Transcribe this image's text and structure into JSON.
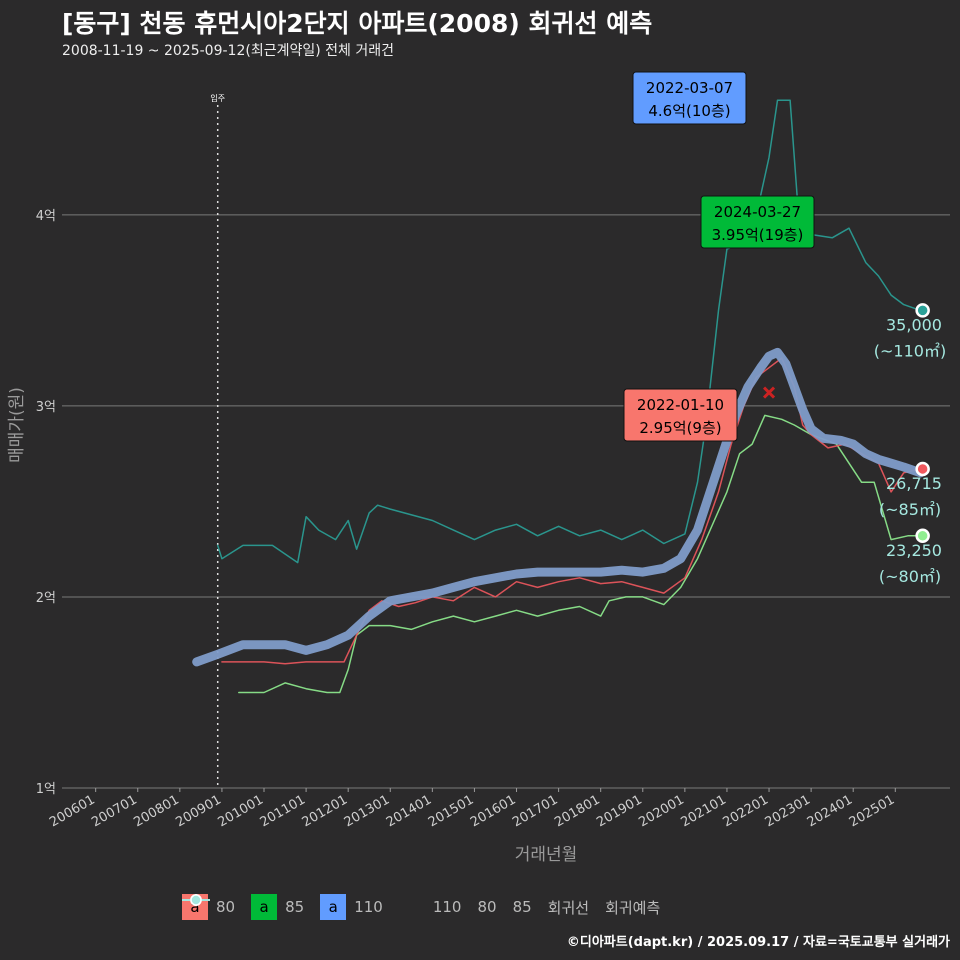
{
  "title": "[동구] 천동 휴먼시아2단지 아파트(2008) 회귀선 예측",
  "subtitle": "2008-11-19 ~ 2025-09-12(최근계약일) 전체 거래건",
  "caption": "©디아파트(dapt.kr) / 2025.09.17 / 자료=국토교통부 실거래가",
  "colors": {
    "c80": "#f8766d",
    "c85": "#00ba38",
    "c110": "#619cff",
    "line110": "#2aa198",
    "line80": "#90ee90",
    "line85": "#f0585e",
    "regression": "#7f9cc9",
    "forecast": "#a5e8e0"
  },
  "chart_data": {
    "type": "line",
    "xlabel": "거래년월",
    "ylabel": "매매가(원)",
    "ylim": [
      1.0,
      4.8
    ],
    "y_ticks": [
      1,
      2,
      3,
      4
    ],
    "y_tick_labels": [
      "1억",
      "2억",
      "3억",
      "4억"
    ],
    "x_range": [
      2005.2,
      2026.3
    ],
    "x_ticks": [
      2006,
      2007,
      2008,
      2009,
      2010,
      2011,
      2012,
      2013,
      2014,
      2015,
      2016,
      2017,
      2018,
      2019,
      2020,
      2021,
      2022,
      2023,
      2024,
      2025
    ],
    "x_tick_labels": [
      "200601",
      "200701",
      "200801",
      "200901",
      "201001",
      "201101",
      "201201",
      "201301",
      "201401",
      "201501",
      "201601",
      "201701",
      "201801",
      "201901",
      "202001",
      "202101",
      "202201",
      "202301",
      "202401",
      "202501"
    ],
    "move_in": {
      "x": 2008.9,
      "label": "입주"
    },
    "series": [
      {
        "name": "110",
        "points": [
          [
            2008.9,
            2.27
          ],
          [
            2009.0,
            2.2
          ],
          [
            2009.5,
            2.27
          ],
          [
            2010.2,
            2.27
          ],
          [
            2010.8,
            2.18
          ],
          [
            2011.0,
            2.42
          ],
          [
            2011.3,
            2.35
          ],
          [
            2011.7,
            2.3
          ],
          [
            2012.0,
            2.4
          ],
          [
            2012.2,
            2.25
          ],
          [
            2012.5,
            2.44
          ],
          [
            2012.7,
            2.48
          ],
          [
            2013.0,
            2.46
          ],
          [
            2014.0,
            2.4
          ],
          [
            2014.5,
            2.35
          ],
          [
            2015.0,
            2.3
          ],
          [
            2015.5,
            2.35
          ],
          [
            2016.0,
            2.38
          ],
          [
            2016.5,
            2.32
          ],
          [
            2017.0,
            2.37
          ],
          [
            2017.5,
            2.32
          ],
          [
            2018.0,
            2.35
          ],
          [
            2018.5,
            2.3
          ],
          [
            2019.0,
            2.35
          ],
          [
            2019.5,
            2.28
          ],
          [
            2020.0,
            2.33
          ],
          [
            2020.3,
            2.6
          ],
          [
            2020.5,
            2.9
          ],
          [
            2020.8,
            3.5
          ],
          [
            2021.0,
            3.82
          ],
          [
            2021.3,
            3.85
          ],
          [
            2021.5,
            3.95
          ],
          [
            2021.8,
            4.1
          ],
          [
            2022.0,
            4.3
          ],
          [
            2022.2,
            4.6
          ],
          [
            2022.5,
            4.6
          ],
          [
            2022.7,
            4.0
          ],
          [
            2022.9,
            3.9
          ],
          [
            2023.5,
            3.88
          ],
          [
            2023.9,
            3.93
          ],
          [
            2024.3,
            3.75
          ],
          [
            2024.6,
            3.68
          ],
          [
            2024.9,
            3.58
          ],
          [
            2025.2,
            3.53
          ],
          [
            2025.6,
            3.5
          ]
        ]
      },
      {
        "name": "80",
        "points": [
          [
            2009.4,
            1.5
          ],
          [
            2010.0,
            1.5
          ],
          [
            2010.5,
            1.55
          ],
          [
            2011.0,
            1.52
          ],
          [
            2011.5,
            1.5
          ],
          [
            2011.8,
            1.5
          ],
          [
            2012.0,
            1.62
          ],
          [
            2012.2,
            1.8
          ],
          [
            2012.5,
            1.85
          ],
          [
            2013.0,
            1.85
          ],
          [
            2013.5,
            1.83
          ],
          [
            2014.0,
            1.87
          ],
          [
            2014.5,
            1.9
          ],
          [
            2015.0,
            1.87
          ],
          [
            2015.5,
            1.9
          ],
          [
            2016.0,
            1.93
          ],
          [
            2016.5,
            1.9
          ],
          [
            2017.0,
            1.93
          ],
          [
            2017.5,
            1.95
          ],
          [
            2018.0,
            1.9
          ],
          [
            2018.2,
            1.98
          ],
          [
            2018.6,
            2.0
          ],
          [
            2019.0,
            2.0
          ],
          [
            2019.5,
            1.96
          ],
          [
            2019.9,
            2.05
          ],
          [
            2020.3,
            2.2
          ],
          [
            2020.7,
            2.4
          ],
          [
            2021.0,
            2.55
          ],
          [
            2021.3,
            2.75
          ],
          [
            2021.6,
            2.8
          ],
          [
            2021.9,
            2.95
          ],
          [
            2022.3,
            2.93
          ],
          [
            2022.6,
            2.9
          ],
          [
            2023.0,
            2.85
          ],
          [
            2023.6,
            2.8
          ],
          [
            2024.2,
            2.6
          ],
          [
            2024.5,
            2.6
          ],
          [
            2024.9,
            2.3
          ],
          [
            2025.3,
            2.32
          ],
          [
            2025.6,
            2.32
          ]
        ]
      },
      {
        "name": "85",
        "points": [
          [
            2009.0,
            1.66
          ],
          [
            2009.5,
            1.66
          ],
          [
            2010.0,
            1.66
          ],
          [
            2010.5,
            1.65
          ],
          [
            2011.0,
            1.66
          ],
          [
            2011.5,
            1.66
          ],
          [
            2011.9,
            1.66
          ],
          [
            2012.2,
            1.8
          ],
          [
            2012.5,
            1.93
          ],
          [
            2012.8,
            1.98
          ],
          [
            2013.2,
            1.95
          ],
          [
            2013.6,
            1.97
          ],
          [
            2014.0,
            2.0
          ],
          [
            2014.5,
            1.98
          ],
          [
            2015.0,
            2.05
          ],
          [
            2015.5,
            2.0
          ],
          [
            2016.0,
            2.08
          ],
          [
            2016.5,
            2.05
          ],
          [
            2017.0,
            2.08
          ],
          [
            2017.5,
            2.1
          ],
          [
            2018.0,
            2.07
          ],
          [
            2018.5,
            2.08
          ],
          [
            2019.0,
            2.05
          ],
          [
            2019.5,
            2.02
          ],
          [
            2020.0,
            2.1
          ],
          [
            2020.4,
            2.3
          ],
          [
            2020.8,
            2.55
          ],
          [
            2021.1,
            2.8
          ],
          [
            2021.4,
            3.0
          ],
          [
            2021.7,
            3.15
          ],
          [
            2022.0,
            3.2
          ],
          [
            2022.3,
            3.25
          ],
          [
            2022.6,
            3.1
          ],
          [
            2022.8,
            2.9
          ],
          [
            2023.0,
            2.85
          ],
          [
            2023.4,
            2.78
          ],
          [
            2023.8,
            2.8
          ],
          [
            2024.2,
            2.75
          ],
          [
            2024.6,
            2.7
          ],
          [
            2024.9,
            2.55
          ],
          [
            2025.2,
            2.65
          ],
          [
            2025.6,
            2.67
          ]
        ]
      },
      {
        "name": "회귀선",
        "points": [
          [
            2008.4,
            1.66
          ],
          [
            2008.9,
            1.7
          ],
          [
            2009.5,
            1.75
          ],
          [
            2010.0,
            1.75
          ],
          [
            2010.5,
            1.75
          ],
          [
            2011.0,
            1.72
          ],
          [
            2011.5,
            1.75
          ],
          [
            2012.0,
            1.8
          ],
          [
            2012.5,
            1.9
          ],
          [
            2013.0,
            1.98
          ],
          [
            2013.5,
            2.0
          ],
          [
            2014.0,
            2.02
          ],
          [
            2014.5,
            2.05
          ],
          [
            2015.0,
            2.08
          ],
          [
            2015.5,
            2.1
          ],
          [
            2016.0,
            2.12
          ],
          [
            2016.5,
            2.13
          ],
          [
            2017.0,
            2.13
          ],
          [
            2017.5,
            2.13
          ],
          [
            2018.0,
            2.13
          ],
          [
            2018.5,
            2.14
          ],
          [
            2019.0,
            2.13
          ],
          [
            2019.5,
            2.15
          ],
          [
            2019.9,
            2.2
          ],
          [
            2020.3,
            2.35
          ],
          [
            2020.6,
            2.55
          ],
          [
            2020.9,
            2.75
          ],
          [
            2021.2,
            2.95
          ],
          [
            2021.5,
            3.1
          ],
          [
            2021.8,
            3.2
          ],
          [
            2022.0,
            3.26
          ],
          [
            2022.2,
            3.28
          ],
          [
            2022.4,
            3.22
          ],
          [
            2022.6,
            3.1
          ],
          [
            2022.8,
            2.98
          ],
          [
            2023.0,
            2.88
          ],
          [
            2023.3,
            2.83
          ],
          [
            2023.7,
            2.82
          ],
          [
            2024.0,
            2.8
          ],
          [
            2024.3,
            2.75
          ],
          [
            2024.6,
            2.72
          ],
          [
            2024.9,
            2.7
          ],
          [
            2025.2,
            2.68
          ],
          [
            2025.6,
            2.65
          ]
        ]
      }
    ],
    "end_points": [
      {
        "series": "110",
        "x": 2025.65,
        "y": 3.5,
        "value_label": "35,000",
        "area_label": "(~110㎡)"
      },
      {
        "series": "85",
        "x": 2025.65,
        "y": 2.67,
        "value_label": "26,715",
        "area_label": "(~85㎡)"
      },
      {
        "series": "80",
        "x": 2025.65,
        "y": 2.32,
        "value_label": "23,250",
        "area_label": "(~80㎡)"
      }
    ],
    "annotations": [
      {
        "series": "110",
        "x": 2022.2,
        "y": 4.6,
        "date": "2022-03-07",
        "price": "4.6억(10층)"
      },
      {
        "series": "85",
        "x": 2024.2,
        "y": 3.95,
        "date": "2024-03-27",
        "price": "3.95억(19층)"
      },
      {
        "series": "80",
        "x": 2022.0,
        "y": 2.95,
        "date": "2022-01-10",
        "price": "2.95억(9층)"
      }
    ],
    "peak_marker": {
      "x": 2022.0,
      "y": 3.07
    },
    "legend_area": [
      {
        "glyph": "a",
        "label": "80",
        "color": "#f8766d"
      },
      {
        "glyph": "a",
        "label": "85",
        "color": "#00ba38"
      },
      {
        "glyph": "a",
        "label": "110",
        "color": "#619cff"
      }
    ],
    "legend_lines": [
      {
        "label": "110",
        "color": "#2aa198"
      },
      {
        "label": "80",
        "color": "#90ee90"
      },
      {
        "label": "85",
        "color": "#f0585e"
      },
      {
        "label": "회귀선",
        "color": "#7f9cc9"
      },
      {
        "label": "회귀예측",
        "color": "#a5e8e0"
      }
    ]
  }
}
